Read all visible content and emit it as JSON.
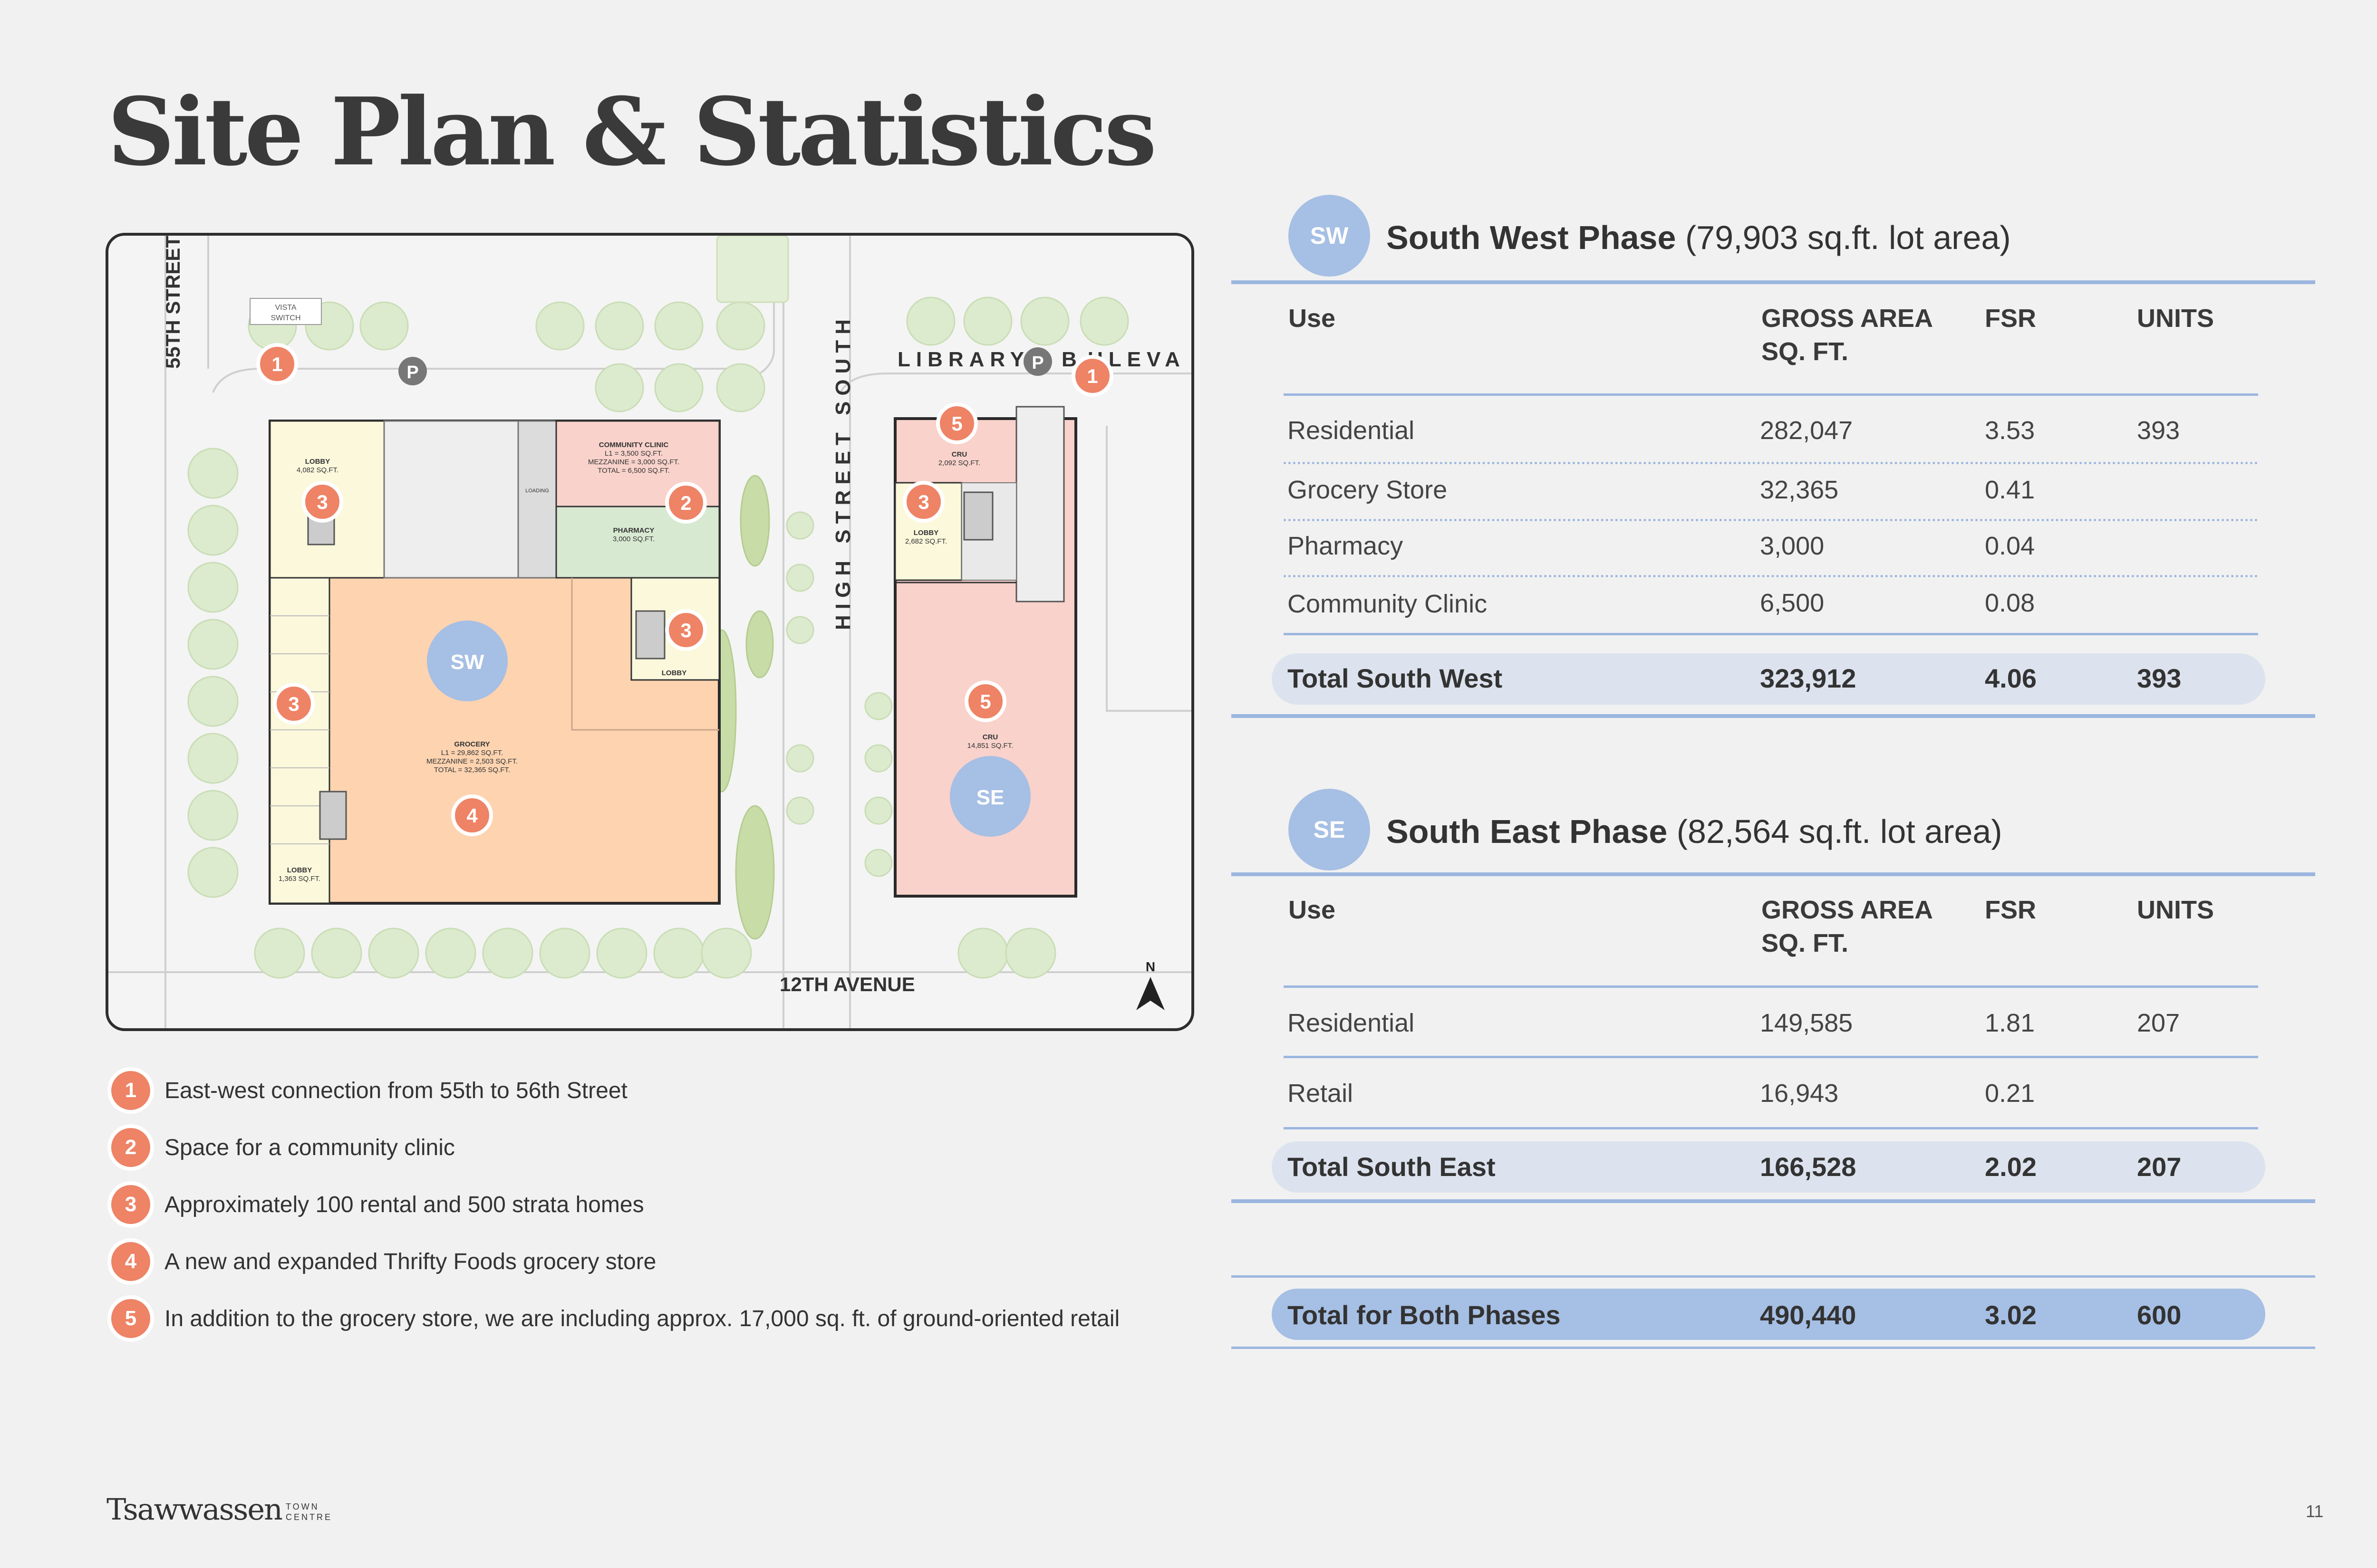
{
  "title": "Site Plan & Statistics",
  "map": {
    "street_55": "55TH STREET",
    "street_12": "12TH AVENUE",
    "high_street": "HIGH STREET SOUTH",
    "library": "LIBRARY",
    "library_end": "ULEVA",
    "library_mid": "B",
    "north": "N",
    "vista": "VISTA",
    "vista2": "SWITCH",
    "parking": "P",
    "sw": "SW",
    "se": "SE",
    "labels": {
      "lobby_a": "LOBBY",
      "lobby_a_area": "4,082 SQ.FT.",
      "clinic": "COMMUNITY CLINIC",
      "clinic_l1": "L1 = 3,500 SQ.FT.",
      "clinic_mez": "MEZZANINE = 3,000 SQ.FT.",
      "clinic_total": "TOTAL = 6,500 SQ.FT.",
      "pharmacy": "PHARMACY",
      "pharmacy_area": "3,000 SQ.FT.",
      "loading": "LOADING",
      "lobby_b": "LOBBY",
      "grocery": "GROCERY",
      "grocery_l1": "L1 = 29,862 SQ.FT.",
      "grocery_mez": "MEZZANINE = 2,503 SQ.FT.",
      "grocery_total": "TOTAL = 32,365 SQ.FT.",
      "lobby_c": "LOBBY",
      "lobby_c_area": "1,363 SQ.FT.",
      "cru_a": "CRU",
      "cru_a_area": "2,092 SQ.FT.",
      "lobby_d": "LOBBY",
      "lobby_d_area": "2,682 SQ.FT.",
      "cru_b": "CRU",
      "cru_b_area": "14,851 SQ.FT."
    }
  },
  "legend": [
    {
      "num": "1",
      "text": "East-west connection from 55th to 56th Street"
    },
    {
      "num": "2",
      "text": "Space for a community clinic"
    },
    {
      "num": "3",
      "text": "Approximately 100 rental and 500 strata homes"
    },
    {
      "num": "4",
      "text": "A new and expanded Thrifty Foods grocery store"
    },
    {
      "num": "5",
      "text": "In addition to the grocery store, we are including approx. 17,000 sq. ft. of ground-oriented retail"
    }
  ],
  "sw": {
    "badge": "SW",
    "name": "South West Phase",
    "lot": "(79,903 sq.ft. lot area)",
    "headers": {
      "use": "Use",
      "gross1": "GROSS AREA",
      "gross2": "SQ. FT.",
      "fsr": "FSR",
      "units": "UNITS"
    },
    "rows": [
      {
        "use": "Residential",
        "gross": "282,047",
        "fsr": "3.53",
        "units": "393"
      },
      {
        "use": "Grocery Store",
        "gross": "32,365",
        "fsr": "0.41",
        "units": ""
      },
      {
        "use": "Pharmacy",
        "gross": "3,000",
        "fsr": "0.04",
        "units": ""
      },
      {
        "use": "Community Clinic",
        "gross": "6,500",
        "fsr": "0.08",
        "units": ""
      }
    ],
    "total": {
      "use": "Total South West",
      "gross": "323,912",
      "fsr": "4.06",
      "units": "393"
    }
  },
  "se": {
    "badge": "SE",
    "name": "South East Phase",
    "lot": "(82,564 sq.ft. lot area)",
    "headers": {
      "use": "Use",
      "gross1": "GROSS AREA",
      "gross2": "SQ. FT.",
      "fsr": "FSR",
      "units": "UNITS"
    },
    "rows": [
      {
        "use": "Residential",
        "gross": "149,585",
        "fsr": "1.81",
        "units": "207"
      },
      {
        "use": "Retail",
        "gross": "16,943",
        "fsr": "0.21",
        "units": ""
      }
    ],
    "total": {
      "use": "Total South East",
      "gross": "166,528",
      "fsr": "2.02",
      "units": "207"
    }
  },
  "grand": {
    "use": "Total for Both Phases",
    "gross": "490,440",
    "fsr": "3.02",
    "units": "600"
  },
  "footer": {
    "logo": "Tsawwassen",
    "logo_small1": "TOWN",
    "logo_small2": "CENTRE",
    "page": "11"
  },
  "colors": {
    "accent_blue": "#a6bfe4",
    "badge_orange": "#ee8366",
    "grocery": "#fdd3b0",
    "cru": "#f8d2cb",
    "residential": "#fbf8dc",
    "pharmacy": "#d8e9d2"
  }
}
